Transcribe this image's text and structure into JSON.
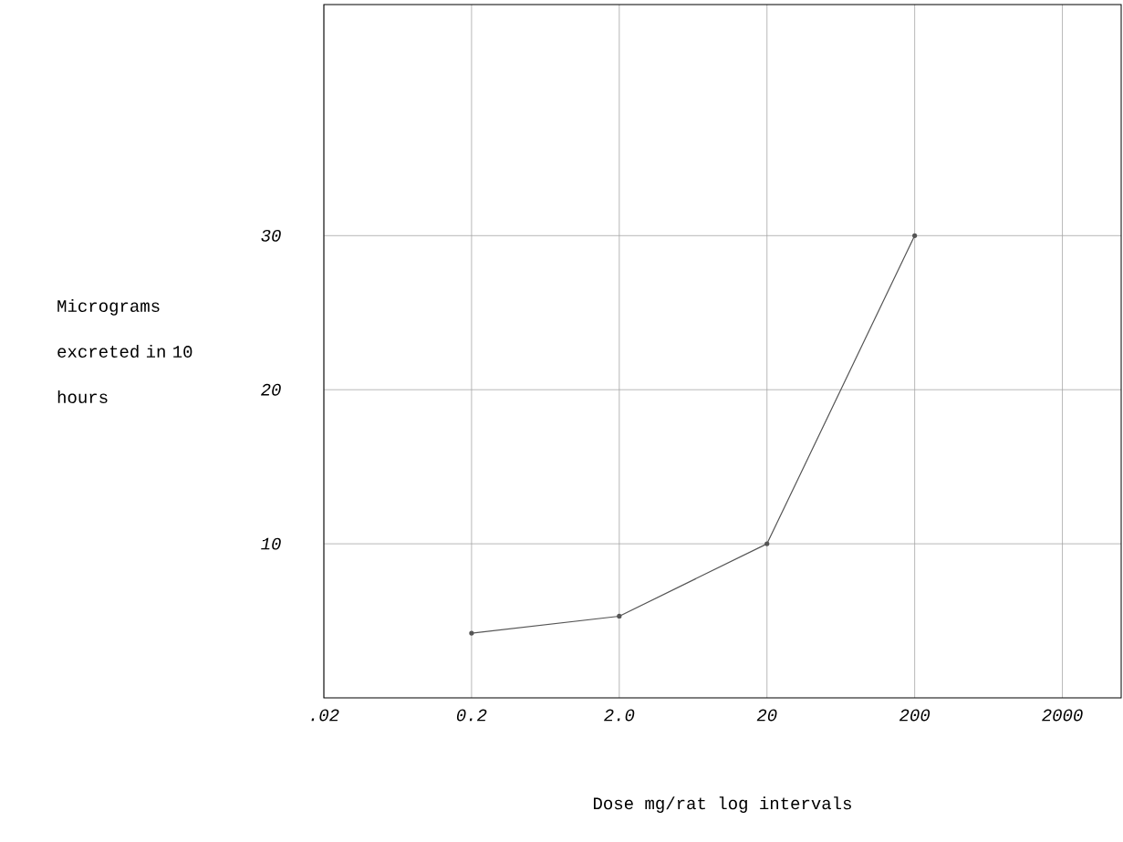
{
  "chart_data": {
    "type": "line",
    "xlabel": "Dose mg/rat log intervals",
    "ylabel": "Micrograms excreted in 10 hours",
    "x": [
      0.2,
      2,
      20,
      200
    ],
    "series": [
      {
        "color": "#555555",
        "values": [
          4.2,
          5.3,
          10,
          30
        ]
      }
    ],
    "log": "x",
    "xlim": [
      0.02,
      5000
    ],
    "ylim": [
      0,
      45
    ],
    "xticks": [
      {
        "value": 0.02,
        "label": ".02"
      },
      0.2,
      {
        "value": 2,
        "label": "2.0"
      },
      20,
      200,
      2000
    ],
    "yticks": [
      10,
      20,
      30
    ],
    "grid": true,
    "marker": "circle",
    "line_style": "solid"
  }
}
